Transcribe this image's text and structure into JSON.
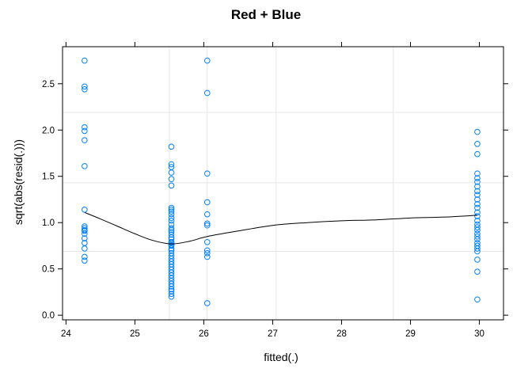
{
  "chart_data": {
    "type": "scatter",
    "title": "Red + Blue",
    "xlabel": "fitted(.)",
    "ylabel": "sqrt(abs(resid(.)))",
    "xlim": [
      23.95,
      30.35
    ],
    "ylim": [
      -0.05,
      2.9
    ],
    "xticks": [
      24,
      25,
      26,
      27,
      28,
      29,
      30
    ],
    "xtick_labels": [
      "24",
      "25",
      "26",
      "27",
      "28",
      "29",
      "30"
    ],
    "yticks": [
      0.0,
      0.5,
      1.0,
      1.5,
      2.0,
      2.5
    ],
    "ytick_labels": [
      "0.0",
      "0.5",
      "1.0",
      "1.5",
      "2.0",
      "2.5"
    ],
    "grid_x": [
      25.5,
      26.05,
      27.05,
      28.75
    ],
    "grid_y": [
      0.69,
      1.43,
      2.19
    ],
    "colors": {
      "points": "#0080ff",
      "smooth": "#000000",
      "grid": "#e6e6e6",
      "frame": "#000000"
    },
    "series": [
      {
        "x": [
          24.27,
          24.27,
          24.27,
          24.27,
          24.27,
          24.27,
          24.27,
          24.27,
          24.27,
          24.27,
          24.27,
          24.27,
          24.27,
          24.27,
          24.27,
          24.27,
          24.27,
          24.27,
          25.53,
          25.53,
          25.53,
          25.53,
          25.53,
          25.53,
          25.53,
          25.53,
          25.53,
          25.53,
          25.53,
          25.53,
          25.53,
          25.53,
          25.53,
          25.53,
          25.53,
          25.53,
          25.53,
          25.53,
          25.53,
          25.53,
          25.53,
          25.53,
          25.53,
          25.53,
          25.53,
          25.53,
          25.53,
          25.53,
          25.53,
          25.53,
          25.53,
          25.53,
          25.53,
          25.53,
          25.53,
          25.53,
          25.53,
          25.53,
          25.53,
          25.53,
          26.05,
          26.05,
          26.05,
          26.05,
          26.05,
          26.05,
          26.05,
          26.05,
          26.05,
          26.05,
          26.05,
          26.05,
          29.97,
          29.97,
          29.97,
          29.97,
          29.97,
          29.97,
          29.97,
          29.97,
          29.97,
          29.97,
          29.97,
          29.97,
          29.97,
          29.97,
          29.97,
          29.97,
          29.97,
          29.97,
          29.97,
          29.97,
          29.97,
          29.97,
          29.97,
          29.97,
          29.97,
          29.97,
          29.97,
          29.97
        ],
        "y": [
          2.75,
          2.47,
          2.44,
          2.03,
          1.99,
          1.89,
          1.61,
          1.14,
          0.96,
          0.94,
          0.92,
          0.91,
          0.88,
          0.83,
          0.78,
          0.72,
          0.63,
          0.59,
          1.82,
          1.63,
          1.6,
          1.54,
          1.47,
          1.4,
          1.16,
          1.14,
          1.12,
          1.09,
          1.05,
          1.02,
          0.98,
          0.94,
          0.92,
          0.9,
          0.87,
          0.84,
          0.82,
          0.78,
          0.75,
          0.72,
          0.7,
          0.67,
          0.64,
          0.61,
          0.58,
          0.55,
          0.52,
          0.49,
          0.46,
          0.43,
          0.4,
          0.37,
          0.34,
          0.31,
          0.28,
          0.26,
          0.23,
          0.2,
          0.79,
          0.76,
          2.75,
          2.4,
          1.53,
          1.22,
          1.09,
          0.99,
          0.97,
          0.79,
          0.7,
          0.67,
          0.63,
          0.13,
          1.98,
          1.85,
          1.74,
          1.53,
          1.48,
          1.44,
          1.39,
          1.34,
          1.3,
          1.25,
          1.2,
          1.16,
          1.11,
          1.07,
          1.02,
          0.98,
          0.95,
          0.92,
          0.88,
          0.85,
          0.82,
          0.78,
          0.75,
          0.72,
          0.69,
          0.6,
          0.47,
          0.17
        ]
      }
    ],
    "smooth": {
      "x": [
        24.27,
        24.5,
        24.75,
        25.0,
        25.25,
        25.53,
        25.8,
        26.05,
        26.5,
        27.0,
        27.5,
        28.0,
        28.5,
        29.0,
        29.5,
        29.97
      ],
      "y": [
        1.11,
        1.04,
        0.96,
        0.88,
        0.81,
        0.77,
        0.8,
        0.85,
        0.91,
        0.97,
        1.0,
        1.02,
        1.03,
        1.05,
        1.06,
        1.08
      ]
    }
  }
}
